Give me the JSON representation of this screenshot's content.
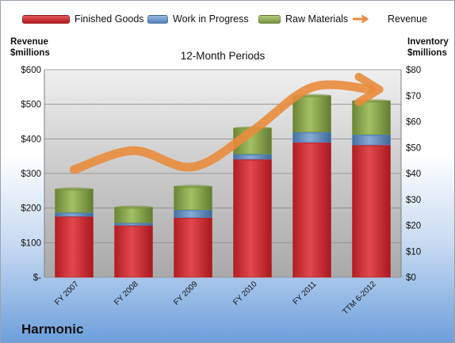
{
  "legend": {
    "finished": "Finished Goods",
    "wip": "Work in Progress",
    "raw": "Raw Materials",
    "revenue": "Revenue"
  },
  "axes": {
    "left_title_1": "Revenue",
    "left_title_2": "$millions",
    "right_title_1": "Inventory",
    "right_title_2": "$millions"
  },
  "company": "Harmonic",
  "colors": {
    "finished": "#c0292e",
    "wip": "#4f81bd",
    "raw": "#77933c",
    "revenue": "#e98c3c"
  },
  "chart_data": {
    "type": "bar",
    "title": "12-Month Periods",
    "categories": [
      "FY 2007",
      "FY 2008",
      "FY 2009",
      "FY 2010",
      "FY 2011",
      "TTM 6-2012"
    ],
    "series": [
      {
        "name": "Finished Goods",
        "axis": "right",
        "stacked": true,
        "values": [
          23.5,
          20,
          23,
          45.5,
          52,
          51
        ]
      },
      {
        "name": "Work in Progress",
        "axis": "right",
        "stacked": true,
        "values": [
          1.5,
          1,
          3,
          2,
          4,
          4
        ]
      },
      {
        "name": "Raw Materials",
        "axis": "right",
        "stacked": true,
        "values": [
          9,
          6,
          9,
          10,
          14,
          13
        ]
      },
      {
        "name": "Revenue",
        "axis": "left",
        "type": "line",
        "values": [
          311,
          366,
          319,
          423,
          549,
          543
        ]
      }
    ],
    "y_left": {
      "label": "Revenue $millions",
      "ylim": [
        0,
        600
      ],
      "ticks": [
        "$-",
        "$100",
        "$200",
        "$300",
        "$400",
        "$500",
        "$600"
      ]
    },
    "y_right": {
      "label": "Inventory $millions",
      "ylim": [
        0,
        80
      ],
      "ticks": [
        "$0",
        "$10",
        "$20",
        "$30",
        "$40",
        "$50",
        "$60",
        "$70",
        "$80"
      ]
    },
    "grid": true,
    "legend_position": "top"
  }
}
